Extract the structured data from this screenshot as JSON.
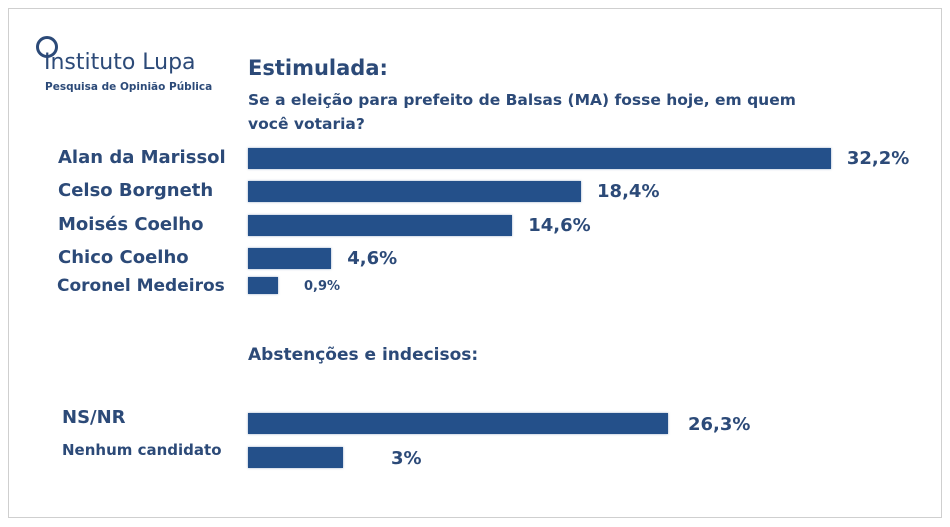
{
  "logo": {
    "title": "Instituto Lupa",
    "subtitle": "Pesquisa de Opinião Pública"
  },
  "chart_data": {
    "type": "bar",
    "orientation": "horizontal",
    "title": "Estimulada:",
    "subtitle": "Se a eleição para prefeito de Balsas (MA) fosse hoje, em quem você votaria?",
    "categories": [
      "Alan da Marissol",
      "Celso Borgneth",
      "Moisés Coelho",
      "Chico Coelho",
      "Coronel Medeiros"
    ],
    "values": [
      32.2,
      18.4,
      14.6,
      4.6,
      0.9
    ],
    "labels": [
      "32,2%",
      "18,4%",
      "14,6%",
      "4,6%",
      "0,9%"
    ],
    "section2": {
      "title": "Abstenções e indecisos:",
      "categories": [
        "NS/NR",
        "Nenhum candidato"
      ],
      "values": [
        26.3,
        3
      ],
      "labels": [
        "26,3%",
        "3%"
      ]
    },
    "unit": "%",
    "color": "#24508a"
  }
}
